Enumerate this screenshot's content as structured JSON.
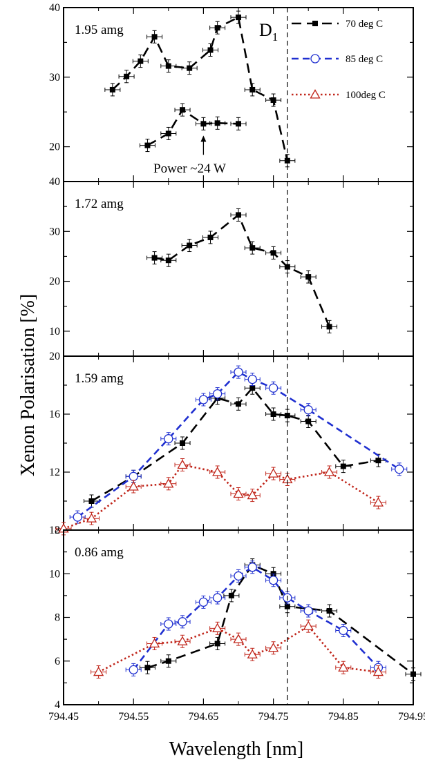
{
  "chart_data": {
    "type": "line",
    "xlabel": "Wavelength [nm]",
    "ylabel": "Xenon Polarisation [%]",
    "xlim": [
      794.45,
      794.95
    ],
    "x_ticks": [
      "794.45",
      "794.55",
      "794.65",
      "794.75",
      "794.85",
      "794.95"
    ],
    "grid": false,
    "legend": {
      "placement": "top-right",
      "entries": [
        {
          "name": "70 deg C",
          "color": "#000000",
          "marker": "filled-square",
          "dash": "long-dash"
        },
        {
          "name": "85 deg C",
          "color": "#1f2fd0",
          "marker": "open-circle",
          "dash": "dash"
        },
        {
          "name": "100deg C",
          "color": "#c0251a",
          "marker": "open-triangle",
          "dash": "dotted"
        }
      ]
    },
    "reference_line": {
      "x": 794.77,
      "label": "D",
      "subscript": "1",
      "style": "dashed"
    },
    "panels": [
      {
        "label": "1.95 amg",
        "ylim": [
          15,
          40
        ],
        "y_ticks": [
          20,
          30,
          40
        ],
        "series": [
          {
            "legend": 0,
            "x": [
              794.52,
              794.54,
              794.56,
              794.58,
              794.6,
              794.63,
              794.66,
              794.67,
              794.7,
              794.72,
              794.75,
              794.77
            ],
            "y": [
              28.2,
              30.1,
              32.3,
              35.8,
              31.6,
              31.3,
              33.9,
              37.1,
              38.6,
              28.2,
              26.7,
              18.0
            ]
          },
          {
            "legend": 0,
            "x": [
              794.57,
              794.6,
              794.62,
              794.65,
              794.67,
              794.7
            ],
            "y": [
              20.2,
              21.9,
              25.3,
              23.3,
              23.4,
              23.3
            ]
          }
        ],
        "annotation": {
          "text": "Power ~24 W",
          "arrow_x": 794.65,
          "arrow_y": 23.3
        }
      },
      {
        "label": "1.72 amg",
        "ylim": [
          5,
          40
        ],
        "y_ticks": [
          10,
          20,
          30,
          40
        ],
        "series": [
          {
            "legend": 0,
            "x": [
              794.58,
              794.6,
              794.63,
              794.66,
              794.7,
              794.72,
              794.75,
              794.77,
              794.8,
              794.83
            ],
            "y": [
              24.7,
              24.2,
              27.2,
              28.8,
              33.3,
              26.7,
              25.7,
              22.9,
              20.9,
              10.9
            ]
          }
        ]
      },
      {
        "label": "1.59 amg",
        "ylim": [
          8,
          20
        ],
        "y_ticks": [
          8,
          12,
          16,
          20
        ],
        "series": [
          {
            "legend": 0,
            "x": [
              794.49,
              794.55,
              794.62,
              794.67,
              794.7,
              794.72,
              794.75,
              794.77,
              794.8,
              794.85,
              794.9
            ],
            "y": [
              10.0,
              11.7,
              14.0,
              17.1,
              16.7,
              17.8,
              16.0,
              15.9,
              15.5,
              12.4,
              12.8
            ]
          },
          {
            "legend": 1,
            "x": [
              794.47,
              794.55,
              794.6,
              794.65,
              794.67,
              794.7,
              794.72,
              794.75,
              794.8,
              794.93
            ],
            "y": [
              8.9,
              11.7,
              14.3,
              17.0,
              17.4,
              18.9,
              18.4,
              17.8,
              16.3,
              12.2
            ]
          },
          {
            "legend": 2,
            "x": [
              794.45,
              794.49,
              794.55,
              794.6,
              794.62,
              794.67,
              794.7,
              794.72,
              794.75,
              794.77,
              794.83,
              794.9
            ],
            "y": [
              8.1,
              8.8,
              11.0,
              11.2,
              12.5,
              12.0,
              10.5,
              10.4,
              11.9,
              11.5,
              12.0,
              9.9
            ]
          }
        ]
      },
      {
        "label": "0.86 amg",
        "ylim": [
          4,
          12
        ],
        "y_ticks": [
          4,
          6,
          8,
          10,
          12
        ],
        "series": [
          {
            "legend": 0,
            "x": [
              794.57,
              794.6,
              794.67,
              794.69,
              794.72,
              794.75,
              794.77,
              794.83,
              794.95
            ],
            "y": [
              5.7,
              6.0,
              6.8,
              9.0,
              10.4,
              10.0,
              8.5,
              8.3,
              5.4
            ]
          },
          {
            "legend": 1,
            "x": [
              794.55,
              794.6,
              794.62,
              794.65,
              794.67,
              794.7,
              794.72,
              794.75,
              794.77,
              794.8,
              794.85,
              794.9
            ],
            "y": [
              5.6,
              7.7,
              7.8,
              8.7,
              8.9,
              9.9,
              10.3,
              9.7,
              8.9,
              8.3,
              7.4,
              5.7
            ]
          },
          {
            "legend": 2,
            "x": [
              794.5,
              794.58,
              794.62,
              794.67,
              794.7,
              794.72,
              794.75,
              794.8,
              794.85,
              794.9
            ],
            "y": [
              5.5,
              6.8,
              6.9,
              7.5,
              7.0,
              6.3,
              6.6,
              7.6,
              5.7,
              5.5
            ]
          }
        ]
      }
    ]
  }
}
